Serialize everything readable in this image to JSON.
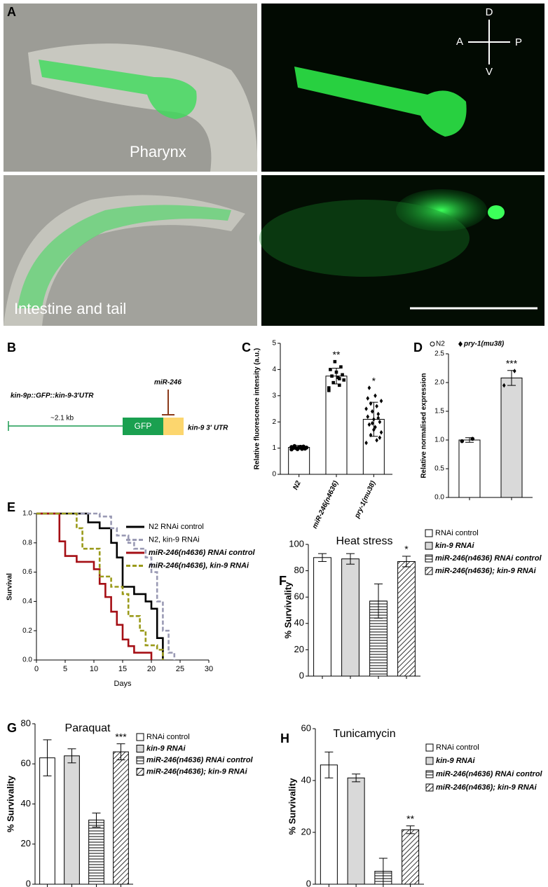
{
  "panels": {
    "A": {
      "letter": "A",
      "labels": [
        "Pharynx",
        "Intestine and tail"
      ],
      "compass": [
        "D",
        "A",
        "P",
        "V"
      ]
    },
    "B": {
      "letter": "B",
      "construct": "kin-9p::GFP::kin-9-3'UTR",
      "mirna": "miR-246",
      "length": "~2.1 kb",
      "gfp": "GFP",
      "utr": "kin-9 3' UTR"
    }
  },
  "chart_data": [
    {
      "type": "bar",
      "panel": "C",
      "ylabel": "Relative fluorescence intensity (a.u.)",
      "categories": [
        "N2",
        "miR-246(n4636)",
        "pry-1(mu38)"
      ],
      "values": [
        1.03,
        3.75,
        2.1
      ],
      "errors": [
        0.07,
        0.3,
        0.65
      ],
      "colors": [
        "#ffffff",
        "#ffffff",
        "#ffffff"
      ],
      "patterns": [
        "none",
        "none",
        "none"
      ],
      "markers": [
        "circle",
        "square",
        "diamond"
      ],
      "points": [
        [
          0.95,
          0.97,
          1.0,
          1.02,
          1.05,
          1.08,
          0.98,
          1.03,
          1.0,
          1.06,
          0.96,
          1.04
        ],
        [
          3.2,
          3.4,
          3.5,
          3.6,
          3.7,
          3.75,
          3.8,
          3.9,
          4.0,
          4.1,
          4.3,
          3.3,
          3.65
        ],
        [
          1.2,
          1.3,
          1.5,
          1.6,
          1.8,
          1.9,
          2.0,
          2.1,
          2.2,
          2.3,
          2.4,
          2.5,
          2.6,
          2.7,
          2.8,
          3.0,
          3.3,
          1.4,
          1.7,
          2.9,
          2.15,
          1.95
        ]
      ],
      "annotations": [
        null,
        "**",
        "*"
      ],
      "ylim": [
        0,
        5
      ],
      "yticks": [
        0,
        1,
        2,
        3,
        4,
        5
      ]
    },
    {
      "type": "bar",
      "panel": "D",
      "ylabel": "Relative normalised expression",
      "categories": [
        "N2",
        "pry-1(mu38)"
      ],
      "legend": "top",
      "values": [
        1.0,
        2.08
      ],
      "errors": [
        0.04,
        0.13
      ],
      "colors": [
        "#ffffff",
        "#d9d9d9"
      ],
      "patterns": [
        "none",
        "none"
      ],
      "markers": [
        "circle",
        "diamond"
      ],
      "points": [
        [
          0.98,
          1.02
        ],
        [
          1.95,
          2.2
        ]
      ],
      "annotations": [
        null,
        "***"
      ],
      "ylim": [
        0,
        2.5
      ],
      "yticks": [
        {
          "value": 0,
          "label": "0.0"
        },
        {
          "value": 0.5,
          "label": "0.5"
        },
        {
          "value": 1,
          "label": "1.0"
        },
        {
          "value": 1.5,
          "label": "1.5"
        },
        {
          "value": 2,
          "label": "2.0"
        },
        {
          "value": 2.5,
          "label": "2.5"
        }
      ]
    },
    {
      "type": "line",
      "panel": "E",
      "xlabel": "Days",
      "ylabel": "Survival",
      "legend": "top-right",
      "series": [
        {
          "name": "N2 RNAi control",
          "color": "#000000",
          "dash": "solid",
          "x": [
            0,
            9,
            11,
            13,
            14,
            15,
            17,
            19,
            20,
            21,
            22
          ],
          "values": [
            1,
            0.94,
            0.9,
            0.8,
            0.7,
            0.5,
            0.45,
            0.4,
            0.35,
            0.15,
            0
          ]
        },
        {
          "name": "N2, kin-9 RNAi",
          "color": "#9a9ab4",
          "dash": "dashed",
          "x": [
            0,
            11,
            13,
            14,
            16,
            17,
            19,
            20,
            21,
            22,
            23,
            24
          ],
          "values": [
            1,
            0.98,
            0.9,
            0.85,
            0.8,
            0.76,
            0.7,
            0.6,
            0.4,
            0.2,
            0.05,
            0
          ]
        },
        {
          "name": "miR-246(n4636) RNAi control",
          "color": "#a50f15",
          "dash": "solid",
          "x": [
            0,
            4,
            5,
            7,
            10,
            11,
            12,
            13,
            14,
            15,
            16,
            17,
            20
          ],
          "values": [
            1,
            0.81,
            0.71,
            0.67,
            0.62,
            0.52,
            0.43,
            0.33,
            0.24,
            0.14,
            0.095,
            0.05,
            0
          ]
        },
        {
          "name": "miR-246(n4636), kin-9 RNAi",
          "color": "#9a9a1a",
          "dash": "dashed",
          "x": [
            0,
            7,
            8,
            11,
            13,
            15,
            16,
            18,
            19,
            21,
            22
          ],
          "values": [
            1,
            0.9,
            0.76,
            0.57,
            0.5,
            0.45,
            0.3,
            0.2,
            0.1,
            0.07,
            0
          ]
        }
      ],
      "xlim": [
        0,
        30
      ],
      "xticks": [
        0,
        5,
        10,
        15,
        20,
        25,
        30
      ],
      "ylim": [
        0,
        1
      ],
      "yticks": [
        {
          "value": 0,
          "label": "0.0"
        },
        {
          "value": 0.2,
          "label": "0.2"
        },
        {
          "value": 0.4,
          "label": "0.4"
        },
        {
          "value": 0.6,
          "label": "0.6"
        },
        {
          "value": 0.8,
          "label": "0.8"
        },
        {
          "value": 1,
          "label": "1.0"
        }
      ]
    },
    {
      "type": "bar",
      "panel": "F",
      "title": "Heat stress",
      "ylabel": "% Survivality",
      "legend": "right",
      "categories": [
        "RNAi control",
        "kin-9 RNAi",
        "miR-246(n4636) RNAi control",
        "miR-246(n4636); kin-9 RNAi"
      ],
      "values": [
        90,
        89,
        57,
        87
      ],
      "errors": [
        3,
        4,
        13,
        4
      ],
      "colors": [
        "#ffffff",
        "#d9d9d9",
        "#ffffff",
        "#ffffff"
      ],
      "patterns": [
        "none",
        "none",
        "horizontal",
        "diagonal"
      ],
      "annotations": [
        null,
        null,
        null,
        "*"
      ],
      "ylim": [
        0,
        100
      ],
      "yticks": [
        0,
        20,
        40,
        60,
        80,
        100
      ]
    },
    {
      "type": "bar",
      "panel": "G",
      "title": "Paraquat",
      "ylabel": "% Survivality",
      "legend": "right",
      "categories": [
        "RNAi control",
        "kin-9 RNAi",
        "miR-246(n4636) RNAi control",
        "miR-246(n4636); kin-9 RNAi"
      ],
      "values": [
        63,
        64,
        32,
        66
      ],
      "errors": [
        9,
        3.5,
        3.5,
        4
      ],
      "colors": [
        "#ffffff",
        "#d9d9d9",
        "#ffffff",
        "#ffffff"
      ],
      "patterns": [
        "none",
        "none",
        "horizontal",
        "diagonal"
      ],
      "annotations": [
        null,
        null,
        null,
        "***"
      ],
      "ylim": [
        0,
        80
      ],
      "yticks": [
        0,
        20,
        40,
        60,
        80
      ]
    },
    {
      "type": "bar",
      "panel": "H",
      "title": "Tunicamycin",
      "ylabel": "% Survivality",
      "legend": "right",
      "categories": [
        "RNAi control",
        "kin-9 RNAi",
        "miR-246(n4636) RNAi control",
        "miR-246(n4636); kin-9 RNAi"
      ],
      "values": [
        46,
        41,
        5,
        21
      ],
      "errors": [
        5,
        1.5,
        5,
        1.5
      ],
      "colors": [
        "#ffffff",
        "#d9d9d9",
        "#ffffff",
        "#ffffff"
      ],
      "patterns": [
        "none",
        "none",
        "horizontal",
        "diagonal"
      ],
      "annotations": [
        null,
        null,
        null,
        "**"
      ],
      "ylim": [
        0,
        60
      ],
      "yticks": [
        0,
        20,
        40,
        60
      ]
    }
  ]
}
